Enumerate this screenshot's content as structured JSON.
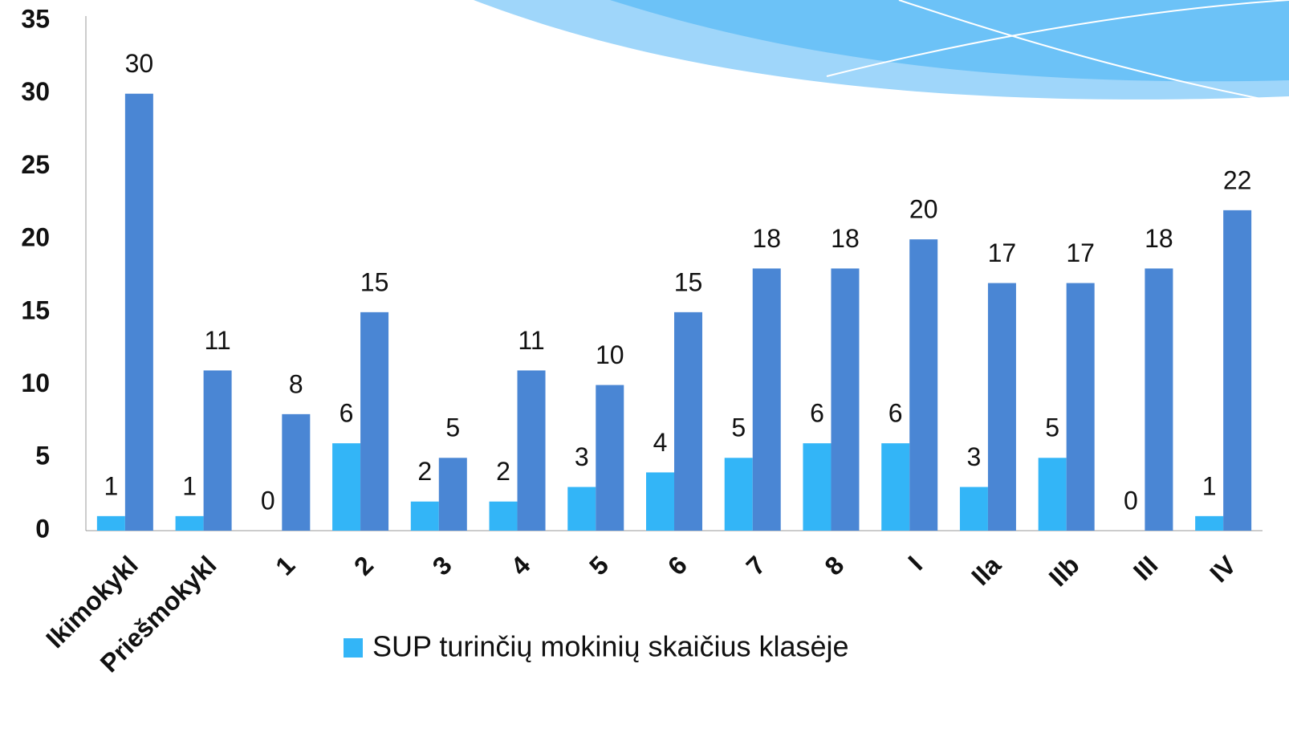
{
  "chart_data": {
    "type": "bar",
    "categories": [
      "Ikimokykl",
      "Priešmokykl",
      "1",
      "2",
      "3",
      "4",
      "5",
      "6",
      "7",
      "8",
      "I",
      "IIa",
      "IIb",
      "III",
      "IV"
    ],
    "series": [
      {
        "name": "SUP turinčių mokinių skaičius klasėje",
        "color": "#33b5f7",
        "values": [
          1,
          1,
          0,
          6,
          2,
          2,
          3,
          4,
          5,
          6,
          6,
          3,
          5,
          0,
          1
        ]
      },
      {
        "color": "#4a86d4",
        "values": [
          30,
          11,
          8,
          15,
          5,
          11,
          10,
          15,
          18,
          18,
          20,
          17,
          17,
          18,
          22
        ]
      }
    ],
    "ylim": [
      0,
      35
    ],
    "yticks": [
      0,
      5,
      10,
      15,
      20,
      25,
      30,
      35
    ],
    "grid": false
  }
}
